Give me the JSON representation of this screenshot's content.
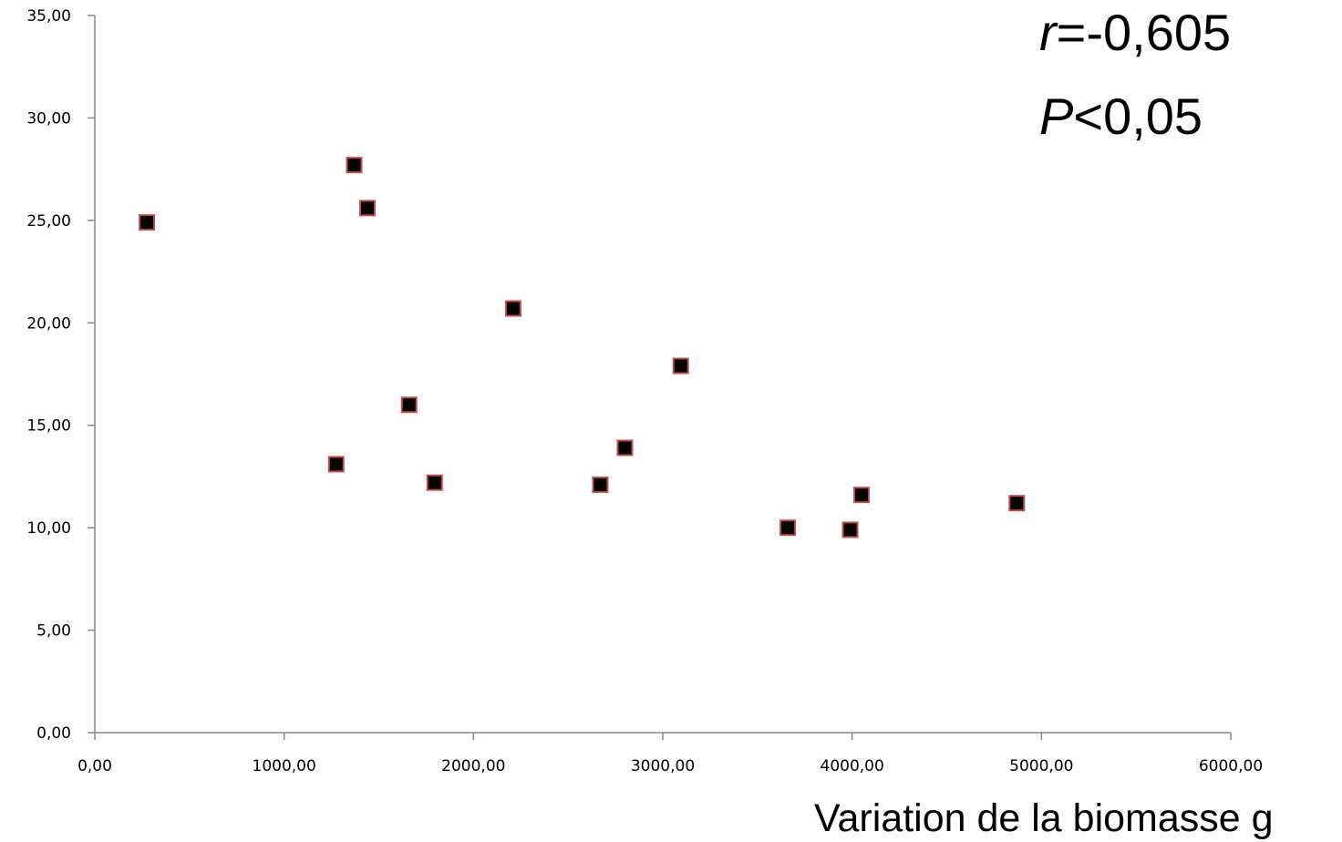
{
  "chart_data": {
    "type": "scatter",
    "title": "",
    "xlabel": "Variation de la biomasse g",
    "ylabel": "",
    "xlim": [
      0,
      6000
    ],
    "ylim": [
      0,
      35
    ],
    "x_ticks": [
      "0,00",
      "1000,00",
      "2000,00",
      "3000,00",
      "4000,00",
      "5000,00",
      "6000,00"
    ],
    "x_tick_values": [
      0,
      1000,
      2000,
      3000,
      4000,
      5000,
      6000
    ],
    "y_ticks": [
      "0,00",
      "5,00",
      "10,00",
      "15,00",
      "20,00",
      "25,00",
      "30,00",
      "35,00"
    ],
    "y_tick_values": [
      0,
      5,
      10,
      15,
      20,
      25,
      30,
      35
    ],
    "grid": false,
    "legend": "none",
    "marker": "square",
    "marker_fill": "#000000",
    "marker_edge": "#c0504d",
    "series": [
      {
        "points": [
          {
            "x": 275,
            "y": 24.9
          },
          {
            "x": 1275,
            "y": 13.1
          },
          {
            "x": 1370,
            "y": 27.7
          },
          {
            "x": 1440,
            "y": 25.6
          },
          {
            "x": 1660,
            "y": 16.0
          },
          {
            "x": 1795,
            "y": 12.2
          },
          {
            "x": 2210,
            "y": 20.7
          },
          {
            "x": 2670,
            "y": 12.1
          },
          {
            "x": 2800,
            "y": 13.9
          },
          {
            "x": 3095,
            "y": 17.9
          },
          {
            "x": 3660,
            "y": 10.0
          },
          {
            "x": 3990,
            "y": 9.9
          },
          {
            "x": 4050,
            "y": 11.6
          },
          {
            "x": 4870,
            "y": 11.2
          }
        ]
      }
    ],
    "annotations": {
      "r_symbol": "r",
      "r_value": "=-0,605",
      "p_symbol": "P",
      "p_value": "<0,05"
    }
  }
}
